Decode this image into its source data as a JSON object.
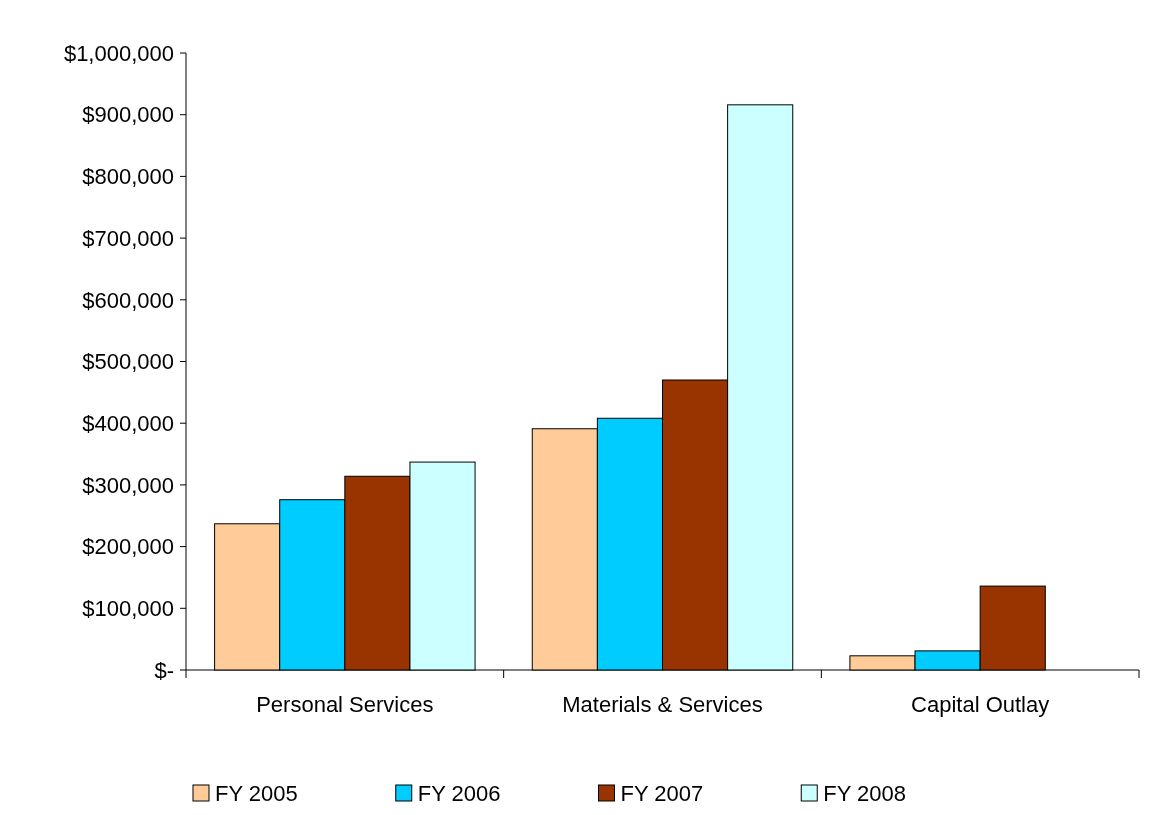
{
  "chart_data": {
    "type": "bar",
    "categories": [
      "Personal Services",
      "Materials & Services",
      "Capital Outlay"
    ],
    "series": [
      {
        "name": "FY 2005",
        "color": "#ffcc99",
        "values": [
          237000,
          391000,
          23000
        ]
      },
      {
        "name": "FY 2006",
        "color": "#00ccff",
        "values": [
          276000,
          408000,
          31000
        ]
      },
      {
        "name": "FY 2007",
        "color": "#993300",
        "values": [
          314000,
          470000,
          136000
        ]
      },
      {
        "name": "FY 2008",
        "color": "#ccffff",
        "values": [
          337000,
          916000,
          0
        ]
      }
    ],
    "ylim": [
      0,
      1000000
    ],
    "yticks": [
      {
        "value": 0,
        "label": "$-"
      },
      {
        "value": 100000,
        "label": "$100,000"
      },
      {
        "value": 200000,
        "label": "$200,000"
      },
      {
        "value": 300000,
        "label": "$300,000"
      },
      {
        "value": 400000,
        "label": "$400,000"
      },
      {
        "value": 500000,
        "label": "$500,000"
      },
      {
        "value": 600000,
        "label": "$600,000"
      },
      {
        "value": 700000,
        "label": "$700,000"
      },
      {
        "value": 800000,
        "label": "$800,000"
      },
      {
        "value": 900000,
        "label": "$900,000"
      },
      {
        "value": 1000000,
        "label": "$1,000,000"
      }
    ],
    "legend": "bottom"
  }
}
